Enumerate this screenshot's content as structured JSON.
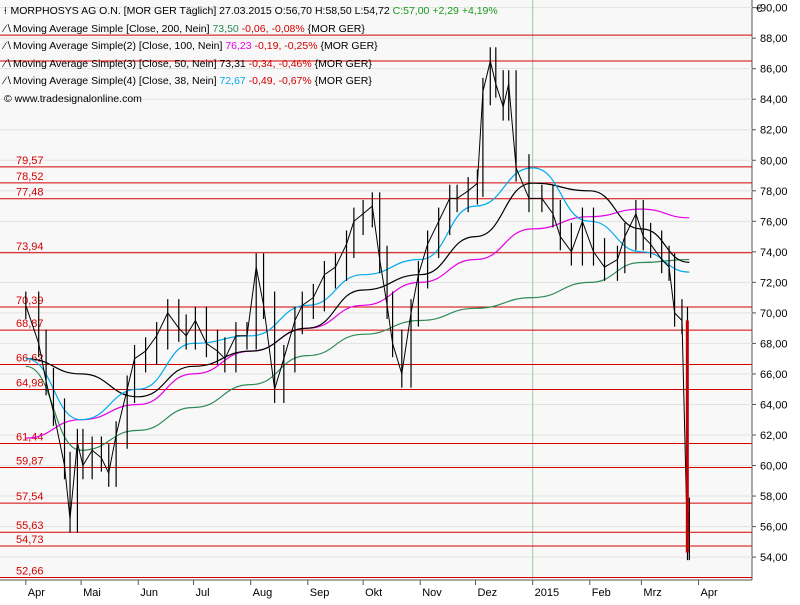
{
  "header": {
    "title": "MORPHOSYS AG O.N. [MOR GER Täglich] 27.03.2015",
    "open": "O:56,70",
    "high": "H:58,50",
    "low": "L:54,72",
    "close": "C:57,00",
    "change_abs": "+2,29",
    "change_pct": "+4,19%",
    "source": "www.tradesignalonline.com",
    "currency": "€"
  },
  "indicators": [
    {
      "label": "Moving Average Simple [Close, 200, Nein]",
      "value": "73,50",
      "change": "-0,06",
      "pct": "-0,08%",
      "suffix": "{MOR GER}",
      "color": "#2e8b57"
    },
    {
      "label": "Moving Average Simple(2) [Close, 100, Nein]",
      "value": "76,23",
      "change": "-0,19",
      "pct": "-0,25%",
      "suffix": "{MOR GER}",
      "color": "#e600e6"
    },
    {
      "label": "Moving Average Simple(3) [Close, 50, Nein]",
      "value": "73,31",
      "change": "-0,34",
      "pct": "-0,46%",
      "suffix": "{MOR GER}",
      "color": "#000000"
    },
    {
      "label": "Moving Average Simple(4) [Close, 38, Nein]",
      "value": "72,67",
      "change": "-0,49",
      "pct": "-0,67%",
      "suffix": "{MOR GER}",
      "color": "#00aaee"
    }
  ],
  "chart_data": {
    "type": "line",
    "title": "MORPHOSYS AG O.N. [MOR GER Täglich] 27.03.2015",
    "ylim": [
      52.5,
      90.5
    ],
    "yticks": [
      "54,00",
      "56,00",
      "58,00",
      "60,00",
      "62,00",
      "64,00",
      "66,00",
      "68,00",
      "70,00",
      "72,00",
      "74,00",
      "76,00",
      "78,00",
      "80,00",
      "82,00",
      "84,00",
      "86,00",
      "88,00",
      "90,00"
    ],
    "months": [
      "Apr",
      "Mai",
      "Jun",
      "Jul",
      "Aug",
      "Sep",
      "Okt",
      "Nov",
      "Dez",
      "2015",
      "Feb",
      "Mrz",
      "Apr"
    ],
    "hlines": [
      {
        "value": 79.57,
        "label": "79,57"
      },
      {
        "value": 78.52,
        "label": "78,52"
      },
      {
        "value": 77.48,
        "label": "77,48"
      },
      {
        "value": 73.94,
        "label": "73,94"
      },
      {
        "value": 70.39,
        "label": "70,39"
      },
      {
        "value": 68.87,
        "label": "68,87"
      },
      {
        "value": 66.62,
        "label": "66,62"
      },
      {
        "value": 64.98,
        "label": "64,98"
      },
      {
        "value": 61.44,
        "label": "61,44"
      },
      {
        "value": 59.87,
        "label": "59,87"
      },
      {
        "value": 57.54,
        "label": "57,54"
      },
      {
        "value": 55.63,
        "label": "55,63"
      },
      {
        "value": 54.73,
        "label": "54,73"
      },
      {
        "value": 52.66,
        "label": "52,66"
      },
      {
        "value": 88.2,
        "label": ""
      },
      {
        "value": 86.5,
        "label": ""
      }
    ],
    "series": [
      {
        "name": "MORPHOSYS AG O.N.",
        "kind": "ohlc",
        "color": "#000000",
        "points": [
          [
            "2014-04-01",
            70.5
          ],
          [
            "2014-04-08",
            68.0
          ],
          [
            "2014-04-12",
            65.5
          ],
          [
            "2014-04-16",
            63.5
          ],
          [
            "2014-04-22",
            60.0
          ],
          [
            "2014-04-25",
            56.5
          ],
          [
            "2014-04-29",
            61.5
          ],
          [
            "2014-05-02",
            60.0
          ],
          [
            "2014-05-07",
            61.0
          ],
          [
            "2014-05-12",
            60.5
          ],
          [
            "2014-05-16",
            59.5
          ],
          [
            "2014-05-20",
            62.0
          ],
          [
            "2014-05-26",
            65.0
          ],
          [
            "2014-05-30",
            67.0
          ],
          [
            "2014-06-05",
            67.5
          ],
          [
            "2014-06-11",
            68.5
          ],
          [
            "2014-06-17",
            70.0
          ],
          [
            "2014-06-23",
            69.0
          ],
          [
            "2014-06-27",
            68.5
          ],
          [
            "2014-07-02",
            69.5
          ],
          [
            "2014-07-08",
            68.0
          ],
          [
            "2014-07-14",
            67.5
          ],
          [
            "2014-07-18",
            67.0
          ],
          [
            "2014-07-24",
            68.5
          ],
          [
            "2014-07-30",
            68.5
          ],
          [
            "2014-08-04",
            73.0
          ],
          [
            "2014-08-08",
            70.5
          ],
          [
            "2014-08-14",
            65.0
          ],
          [
            "2014-08-19",
            67.0
          ],
          [
            "2014-08-25",
            69.5
          ],
          [
            "2014-08-29",
            70.5
          ],
          [
            "2014-09-04",
            71.0
          ],
          [
            "2014-09-10",
            72.5
          ],
          [
            "2014-09-16",
            73.0
          ],
          [
            "2014-09-22",
            74.5
          ],
          [
            "2014-09-26",
            76.0
          ],
          [
            "2014-10-01",
            76.5
          ],
          [
            "2014-10-06",
            77.0
          ],
          [
            "2014-10-10",
            73.5
          ],
          [
            "2014-10-14",
            70.5
          ],
          [
            "2014-10-17",
            68.0
          ],
          [
            "2014-10-22",
            66.0
          ],
          [
            "2014-10-27",
            70.0
          ],
          [
            "2014-10-31",
            72.5
          ],
          [
            "2014-11-05",
            74.5
          ],
          [
            "2014-11-11",
            76.0
          ],
          [
            "2014-11-17",
            77.5
          ],
          [
            "2014-11-21",
            77.5
          ],
          [
            "2014-11-27",
            78.0
          ],
          [
            "2014-12-02",
            78.5
          ],
          [
            "2014-12-05",
            84.5
          ],
          [
            "2014-12-09",
            86.5
          ],
          [
            "2014-12-12",
            85.0
          ],
          [
            "2014-12-16",
            83.5
          ],
          [
            "2014-12-19",
            85.0
          ],
          [
            "2014-12-23",
            79.5
          ],
          [
            "2014-12-30",
            77.5
          ],
          [
            "2015-01-06",
            77.5
          ],
          [
            "2015-01-12",
            76.5
          ],
          [
            "2015-01-16",
            75.0
          ],
          [
            "2015-01-22",
            74.0
          ],
          [
            "2015-01-28",
            76.0
          ],
          [
            "2015-02-03",
            74.0
          ],
          [
            "2015-02-09",
            73.0
          ],
          [
            "2015-02-16",
            73.5
          ],
          [
            "2015-02-20",
            75.0
          ],
          [
            "2015-02-26",
            76.5
          ],
          [
            "2015-03-02",
            75.0
          ],
          [
            "2015-03-06",
            74.5
          ],
          [
            "2015-03-12",
            73.5
          ],
          [
            "2015-03-16",
            73.0
          ],
          [
            "2015-03-19",
            70.0
          ],
          [
            "2015-03-23",
            69.5
          ],
          [
            "2015-03-26",
            54.7
          ],
          [
            "2015-03-27",
            57.0
          ]
        ]
      },
      {
        "name": "Moving Average Simple [Close, 200, Nein]",
        "kind": "ma",
        "color": "#2e8b57",
        "points": [
          [
            "2014-04-01",
            66.5
          ],
          [
            "2014-05-01",
            61.0
          ],
          [
            "2014-06-01",
            62.3
          ],
          [
            "2014-07-01",
            63.8
          ],
          [
            "2014-08-01",
            65.3
          ],
          [
            "2014-09-01",
            67.2
          ],
          [
            "2014-10-01",
            68.6
          ],
          [
            "2014-11-01",
            69.5
          ],
          [
            "2014-12-01",
            70.3
          ],
          [
            "2015-01-01",
            71.0
          ],
          [
            "2015-02-01",
            72.0
          ],
          [
            "2015-03-01",
            73.3
          ],
          [
            "2015-03-27",
            73.5
          ]
        ]
      },
      {
        "name": "Moving Average Simple(2) [Close, 100, Nein]",
        "kind": "ma",
        "color": "#e600e6",
        "points": [
          [
            "2014-04-01",
            61.8
          ],
          [
            "2014-05-01",
            63.0
          ],
          [
            "2014-06-01",
            64.0
          ],
          [
            "2014-07-01",
            66.0
          ],
          [
            "2014-08-01",
            67.5
          ],
          [
            "2014-09-01",
            69.0
          ],
          [
            "2014-10-01",
            70.5
          ],
          [
            "2014-11-01",
            72.0
          ],
          [
            "2014-12-01",
            73.5
          ],
          [
            "2015-01-01",
            75.5
          ],
          [
            "2015-02-01",
            76.3
          ],
          [
            "2015-03-01",
            76.8
          ],
          [
            "2015-03-27",
            76.23
          ]
        ]
      },
      {
        "name": "Moving Average Simple(3) [Close, 50, Nein]",
        "kind": "ma",
        "color": "#000000",
        "points": [
          [
            "2014-04-01",
            67.0
          ],
          [
            "2014-05-01",
            66.0
          ],
          [
            "2014-06-01",
            64.5
          ],
          [
            "2014-07-01",
            66.5
          ],
          [
            "2014-08-01",
            67.5
          ],
          [
            "2014-09-01",
            69.0
          ],
          [
            "2014-10-01",
            71.5
          ],
          [
            "2014-11-01",
            72.5
          ],
          [
            "2014-12-01",
            75.0
          ],
          [
            "2015-01-01",
            78.5
          ],
          [
            "2015-02-01",
            78.0
          ],
          [
            "2015-03-01",
            75.5
          ],
          [
            "2015-03-27",
            73.31
          ]
        ]
      },
      {
        "name": "Moving Average Simple(4) [Close, 38, Nein]",
        "kind": "ma",
        "color": "#00aaee",
        "points": [
          [
            "2014-04-01",
            67.0
          ],
          [
            "2014-05-01",
            63.0
          ],
          [
            "2014-06-01",
            65.0
          ],
          [
            "2014-07-01",
            68.0
          ],
          [
            "2014-08-01",
            68.5
          ],
          [
            "2014-09-01",
            70.5
          ],
          [
            "2014-10-01",
            72.5
          ],
          [
            "2014-11-01",
            73.5
          ],
          [
            "2014-12-01",
            77.0
          ],
          [
            "2015-01-01",
            79.5
          ],
          [
            "2015-02-01",
            76.0
          ],
          [
            "2015-03-01",
            74.0
          ],
          [
            "2015-03-27",
            72.67
          ]
        ]
      }
    ]
  }
}
